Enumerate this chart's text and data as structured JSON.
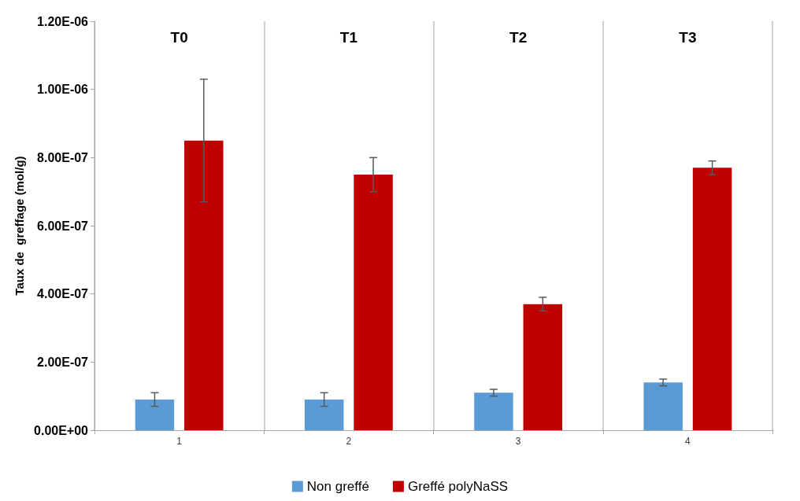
{
  "chart_data": {
    "type": "bar",
    "ylabel": "Taux de  greffage (mol/g)",
    "categories": [
      "1",
      "2",
      "3",
      "4"
    ],
    "series": [
      {
        "name": "Non greffé",
        "color": "#5b9bd5",
        "values": [
          9e-08,
          9e-08,
          1.1e-07,
          1.4e-07
        ],
        "errors": [
          2e-08,
          2e-08,
          1e-08,
          1e-08
        ]
      },
      {
        "name": "Greffé polyNaSS",
        "color": "#c00000",
        "values": [
          8.5e-07,
          7.5e-07,
          3.7e-07,
          7.7e-07
        ],
        "errors": [
          1.8e-07,
          5e-08,
          2e-08,
          2e-08
        ]
      }
    ],
    "ylim": [
      0,
      1.2e-06
    ],
    "yticks": [
      {
        "value": 0,
        "label": "0.00E+00"
      },
      {
        "value": 2e-07,
        "label": "2.00E-07"
      },
      {
        "value": 4e-07,
        "label": "4.00E-07"
      },
      {
        "value": 6e-07,
        "label": "6.00E-07"
      },
      {
        "value": 8e-07,
        "label": "8.00E-07"
      },
      {
        "value": 1e-06,
        "label": "1.00E-06"
      },
      {
        "value": 1.2e-06,
        "label": "1.20E-06"
      }
    ],
    "annotations": [
      "T0",
      "T1",
      "T2",
      "T3"
    ],
    "grid": "x",
    "legend": "bottom"
  }
}
